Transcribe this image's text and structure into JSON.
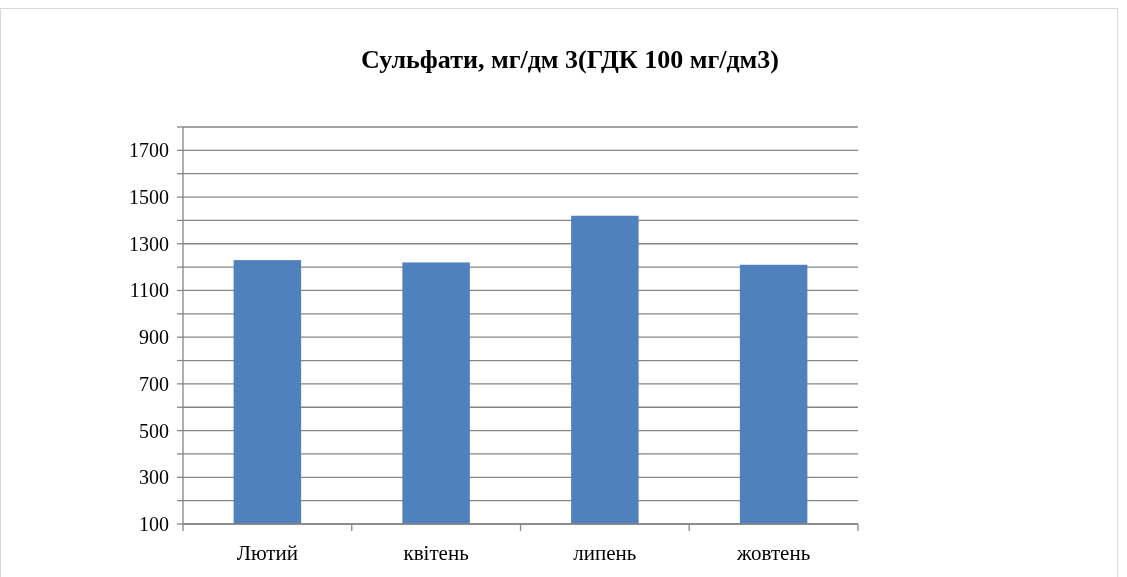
{
  "chart_data": {
    "type": "bar",
    "title": "Сульфати, мг/дм 3(ГДК 100 мг/дм3)",
    "categories": [
      "Лютий",
      "квітень",
      "липень",
      "жовтень"
    ],
    "values": [
      1230,
      1220,
      1420,
      1210
    ],
    "color": "#4f81bd",
    "ylim": [
      100,
      1800
    ],
    "yticks": [
      100,
      {
        "value": 200,
        "label": null
      },
      300,
      {
        "value": 400,
        "label": null
      },
      500,
      {
        "value": 600,
        "label": null
      },
      700,
      {
        "value": 800,
        "label": null
      },
      900,
      {
        "value": 1000,
        "label": null
      },
      1100,
      {
        "value": 1200,
        "label": null
      },
      1300,
      {
        "value": 1400,
        "label": null
      },
      1500,
      {
        "value": 1600,
        "label": null
      },
      1700,
      {
        "value": 1800,
        "label": null
      }
    ],
    "grid": "y"
  }
}
